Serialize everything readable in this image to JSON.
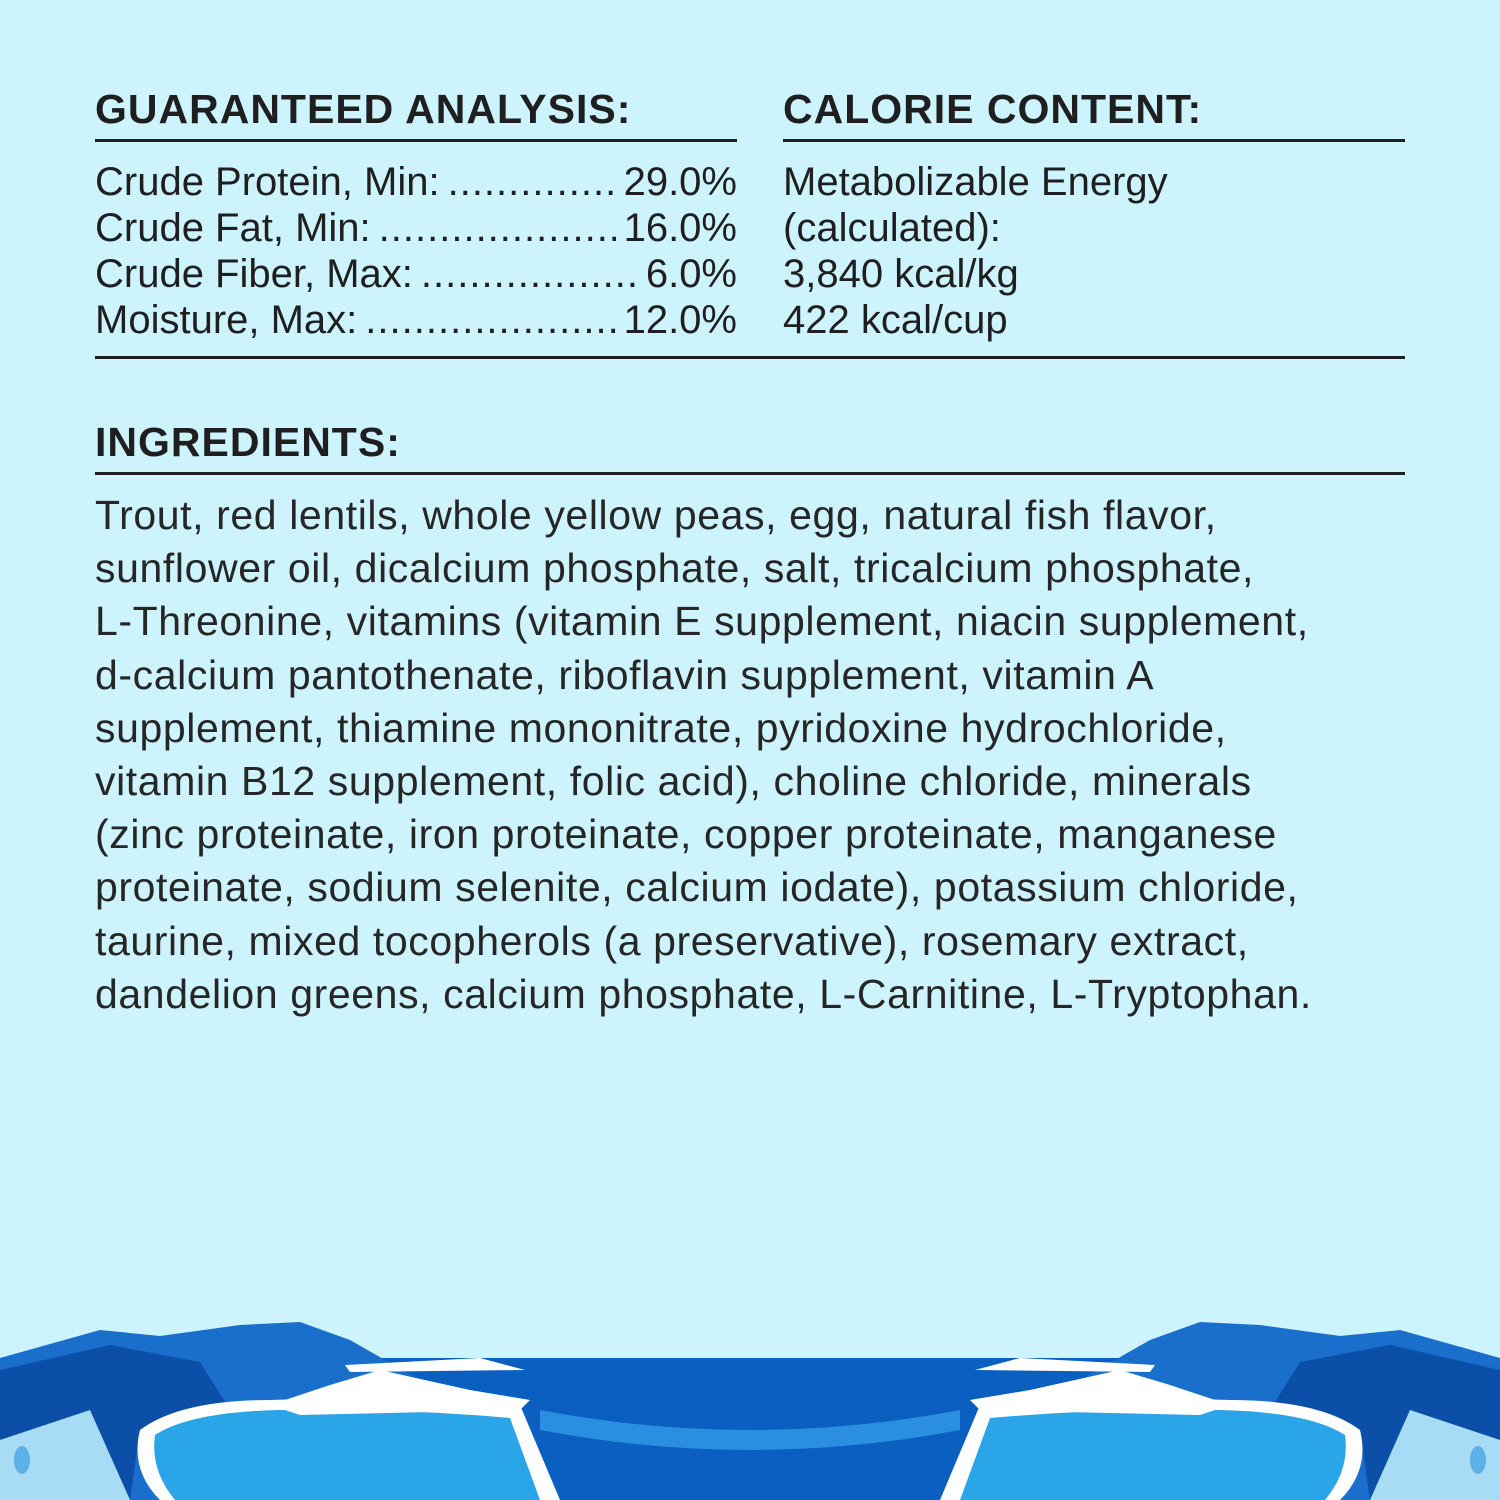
{
  "guaranteed_analysis": {
    "title": "GUARANTEED ANALYSIS:",
    "rows": [
      {
        "label": "Crude Protein, Min:",
        "value": "29.0%"
      },
      {
        "label": "Crude Fat, Min:",
        "value": "16.0%"
      },
      {
        "label": "Crude Fiber, Max:",
        "value": "6.0%"
      },
      {
        "label": "Moisture, Max:",
        "value": "12.0%"
      }
    ]
  },
  "calorie_content": {
    "title": "CALORIE CONTENT:",
    "lines": [
      "Metabolizable Energy",
      "(calculated):",
      "3,840 kcal/kg",
      "422 kcal/cup"
    ]
  },
  "ingredients": {
    "title": "INGREDIENTS:",
    "lines": [
      "Trout, red lentils, whole yellow peas, egg, natural fish flavor,",
      "sunflower oil, dicalcium phosphate, salt, tricalcium phosphate,",
      "L-Threonine, vitamins (vitamin E supplement, niacin supplement,",
      "d-calcium pantothenate, riboflavin supplement, vitamin A",
      "supplement, thiamine mononitrate, pyridoxine hydrochloride,",
      "vitamin B12 supplement, folic acid), choline chloride, minerals",
      "(zinc proteinate, iron proteinate, copper proteinate, manganese",
      "proteinate, sodium selenite, calcium iodate), potassium chloride,",
      "taurine, mixed tocopherols (a preservative), rosemary extract,",
      "dandelion greens, calcium phosphate, L-Carnitine, L-Tryptophan."
    ]
  },
  "colors": {
    "background": "#cdf3fc",
    "text": "#1f1f1f",
    "water_dark": "#0a5fc0",
    "water_light": "#2aa6e8",
    "ice": "#ffffff"
  }
}
